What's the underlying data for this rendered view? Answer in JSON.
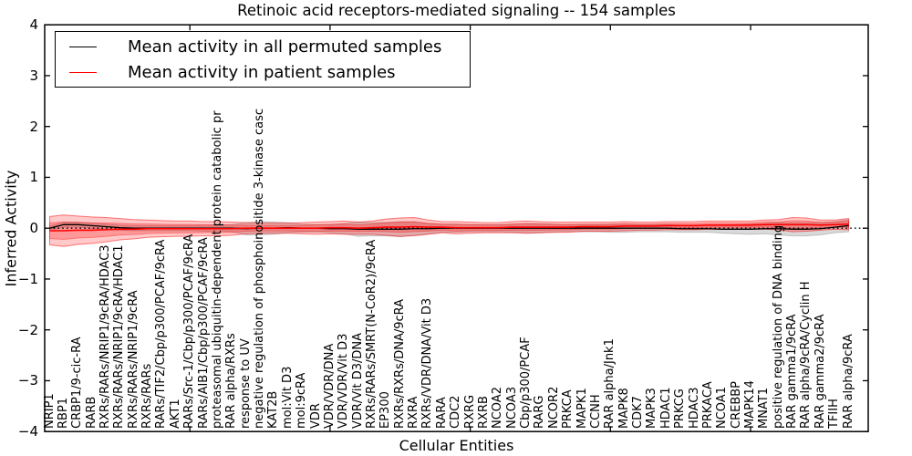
{
  "figure": {
    "title": "Retinoic acid receptors-mediated signaling -- 154 samples",
    "xlabel": "Cellular Entities",
    "ylabel": "Inferred Activity",
    "legend": [
      {
        "label": "Mean activity in all permuted samples",
        "color": "#000000"
      },
      {
        "label": "Mean activity in patient samples",
        "color": "#ff0000"
      }
    ]
  },
  "chart_data": {
    "type": "line",
    "title": "Retinoic acid receptors-mediated signaling -- 154 samples",
    "xlabel": "Cellular Entities",
    "ylabel": "Inferred Activity",
    "ylim": [
      -4,
      4
    ],
    "y_ticks": [
      "4",
      "3",
      "2",
      "1",
      "0",
      "−1",
      "−2",
      "−3",
      "−4"
    ],
    "x_numeric_tick_indices": [
      10,
      20,
      30,
      40,
      50
    ],
    "grid": false,
    "legend_position": "upper left",
    "zero_reference_line": {
      "value": 0,
      "style": "dotted",
      "color": "#000000"
    },
    "categories": [
      "NRIP1",
      "RBP1",
      "CRBP1/9-cic-RA",
      "RARB",
      "RXRs/RARs/NRIP1/9cRA/HDAC3",
      "RXRs/RARs/NRIP1/9cRA/HDAC1",
      "RXRs/RARs/NRIP1/9cRA",
      "RXRs/RARs",
      "RARs/TIF2/Cbp/p300/PCAF/9cRA",
      "AKT1",
      "RARs/Src-1/Cbp/p300/PCAF/9cRA",
      "RARs/AIB1/Cbp/p300/PCAF/9cRA",
      "proteasomal ubiquitin-dependent protein catabolic pr",
      "RAR alpha/RXRs",
      "response to UV",
      "negative regulation of phosphoinositide 3-kinase casc",
      "KAT2B",
      "mol:Vit D3",
      "mol:9cRA",
      "VDR",
      "VDR/VDR/DNA",
      "VDR/VDR/Vit D3",
      "VDR/Vit D3/DNA",
      "RXRs/RARs/SMRT(N-CoR2)/9cRA",
      "EP300",
      "RXRs/RXRs/DNA/9cRA",
      "RXRA",
      "RXRs/VDR/DNA/Vit D3",
      "RARA",
      "CDC2",
      "RXRG",
      "RXRB",
      "NCOA2",
      "NCOA3",
      "Cbp/p300/PCAF",
      "RARG",
      "NCOR2",
      "PRKCA",
      "MAPK1",
      "CCNH",
      "RAR alpha/Jnk1",
      "MAPK8",
      "CDK7",
      "MAPK3",
      "HDAC1",
      "PRKCG",
      "HDAC3",
      "PRKACA",
      "NCOA1",
      "CREBBP",
      "MAPK14",
      "MNAT1",
      "positive regulation of DNA binding",
      "RAR gamma1/9cRA",
      "RAR alpha/9cRA/Cyclin H",
      "RAR gamma2/9cRA",
      "TFIIH",
      "RAR alpha/9cRA"
    ],
    "series": [
      {
        "name": "Mean activity in all permuted samples",
        "color": "#000000",
        "mean": [
          0.0,
          0.07,
          0.07,
          0.05,
          0.03,
          0.01,
          0.0,
          0.0,
          0.0,
          0.0,
          0.0,
          0.0,
          0.0,
          0.0,
          -0.01,
          0.0,
          0.0,
          0.01,
          0.0,
          0.0,
          -0.01,
          -0.01,
          -0.02,
          -0.02,
          -0.02,
          -0.02,
          -0.01,
          -0.01,
          0.0,
          0.0,
          0.0,
          0.0,
          0.0,
          0.0,
          0.0,
          0.0,
          0.0,
          0.0,
          0.0,
          0.0,
          0.0,
          0.0,
          0.0,
          0.0,
          0.0,
          -0.01,
          -0.01,
          -0.01,
          -0.02,
          -0.02,
          -0.02,
          -0.01,
          -0.01,
          -0.02,
          -0.02,
          -0.01,
          0.02,
          0.05
        ],
        "std": [
          0.04,
          0.05,
          0.05,
          0.05,
          0.05,
          0.05,
          0.05,
          0.05,
          0.05,
          0.05,
          0.05,
          0.06,
          0.06,
          0.07,
          0.12,
          0.13,
          0.12,
          0.1,
          0.08,
          0.07,
          0.08,
          0.1,
          0.14,
          0.13,
          0.13,
          0.15,
          0.13,
          0.1,
          0.08,
          0.08,
          0.07,
          0.07,
          0.07,
          0.08,
          0.09,
          0.09,
          0.08,
          0.07,
          0.07,
          0.07,
          0.08,
          0.08,
          0.07,
          0.07,
          0.07,
          0.07,
          0.07,
          0.07,
          0.08,
          0.09,
          0.1,
          0.1,
          0.12,
          0.13,
          0.13,
          0.12,
          0.11,
          0.12
        ],
        "band_color": "#808080"
      },
      {
        "name": "Mean activity in patient samples",
        "color": "#ff0000",
        "mean": [
          -0.05,
          -0.05,
          -0.04,
          -0.04,
          -0.03,
          -0.02,
          -0.02,
          -0.01,
          -0.01,
          -0.01,
          -0.01,
          -0.01,
          -0.01,
          -0.01,
          0.0,
          0.0,
          0.0,
          0.0,
          0.0,
          0.0,
          0.01,
          0.01,
          0.0,
          0.01,
          0.02,
          0.02,
          0.03,
          0.02,
          0.02,
          0.01,
          0.01,
          0.01,
          0.01,
          0.02,
          0.02,
          0.02,
          0.02,
          0.02,
          0.03,
          0.03,
          0.03,
          0.04,
          0.04,
          0.04,
          0.05,
          0.05,
          0.05,
          0.06,
          0.06,
          0.06,
          0.06,
          0.07,
          0.07,
          0.07,
          0.07,
          0.06,
          0.07,
          0.08
        ],
        "std": [
          0.28,
          0.31,
          0.28,
          0.26,
          0.24,
          0.21,
          0.19,
          0.17,
          0.16,
          0.15,
          0.15,
          0.14,
          0.14,
          0.13,
          0.11,
          0.1,
          0.1,
          0.1,
          0.11,
          0.12,
          0.12,
          0.13,
          0.12,
          0.13,
          0.16,
          0.18,
          0.18,
          0.14,
          0.11,
          0.12,
          0.11,
          0.1,
          0.1,
          0.11,
          0.12,
          0.11,
          0.1,
          0.1,
          0.09,
          0.09,
          0.09,
          0.09,
          0.08,
          0.08,
          0.08,
          0.08,
          0.08,
          0.08,
          0.08,
          0.08,
          0.08,
          0.09,
          0.1,
          0.14,
          0.13,
          0.1,
          0.09,
          0.11
        ],
        "band_color": "#ff0000"
      }
    ]
  }
}
